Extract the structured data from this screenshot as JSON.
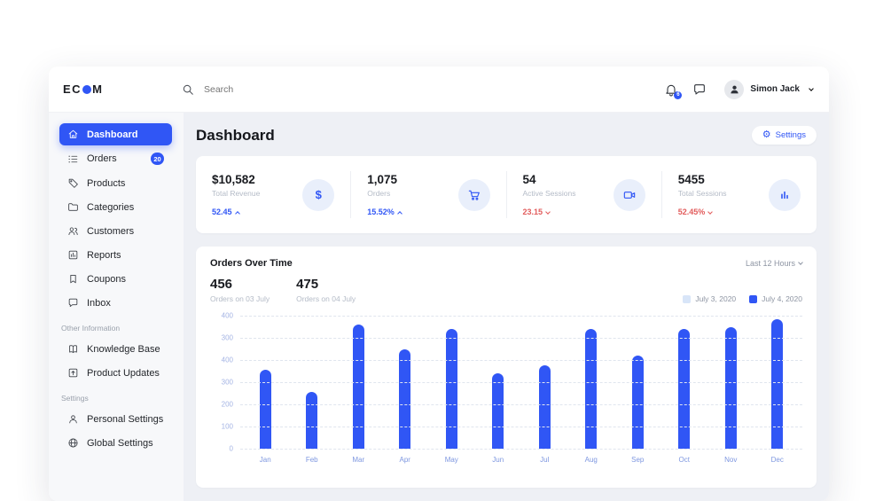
{
  "colors": {
    "accent": "#3056F5",
    "accent_soft": "#E9EFFB",
    "danger": "#E25C5C",
    "legend_light": "#D8E5F8",
    "bar": "#3056F5"
  },
  "header": {
    "logo_prefix": "EC",
    "logo_suffix": "M",
    "search_placeholder": "Search",
    "notification_badge": "6",
    "user_name": "Simon Jack"
  },
  "sidebar": {
    "items": [
      {
        "label": "Dashboard"
      },
      {
        "label": "Orders",
        "badge": "20"
      },
      {
        "label": "Products"
      },
      {
        "label": "Categories"
      },
      {
        "label": "Customers"
      },
      {
        "label": "Reports"
      },
      {
        "label": "Coupons"
      },
      {
        "label": "Inbox"
      }
    ],
    "section_other": "Other Information",
    "other_items": [
      {
        "label": "Knowledge Base"
      },
      {
        "label": "Product Updates"
      }
    ],
    "section_settings": "Settings",
    "settings_items": [
      {
        "label": "Personal Settings"
      },
      {
        "label": "Global Settings"
      }
    ]
  },
  "main": {
    "title": "Dashboard",
    "settings_button": "Settings",
    "settings_icon_glyph": "⚙",
    "stats": [
      {
        "value": "$10,582",
        "label": "Total Revenue",
        "delta": "52.45",
        "trend": "up",
        "icon": "dollar",
        "icon_glyph": "$"
      },
      {
        "value": "1,075",
        "label": "Orders",
        "delta": "15.52%",
        "trend": "up",
        "icon": "cart"
      },
      {
        "value": "54",
        "label": "Active Sessions",
        "delta": "23.15",
        "trend": "down",
        "icon": "video-camera"
      },
      {
        "value": "5455",
        "label": "Total Sessions",
        "delta": "52.45%",
        "trend": "down",
        "icon": "bar-chart"
      }
    ]
  },
  "chart_card": {
    "title": "Orders Over Time",
    "range_selector": "Last 12 Hours",
    "highlights": [
      {
        "value": "456",
        "label": "Orders on 03 July"
      },
      {
        "value": "475",
        "label": "Orders on 04 July"
      }
    ],
    "legend": [
      {
        "label": "July 3, 2020",
        "color": "light"
      },
      {
        "label": "July 4, 2020",
        "color": "accent"
      }
    ]
  },
  "chart_data": {
    "type": "bar",
    "title": "Orders Over Time",
    "categories": [
      "Jan",
      "Feb",
      "Mar",
      "Apr",
      "May",
      "Jun",
      "Jul",
      "Aug",
      "Sep",
      "Oct",
      "Nov",
      "Dec"
    ],
    "values": [
      355,
      255,
      560,
      450,
      540,
      340,
      375,
      540,
      420,
      540,
      550,
      585
    ],
    "ymax": 600,
    "y_tick_labels_top_to_bottom": [
      "400",
      "300",
      "400",
      "300",
      "200",
      "100",
      "0"
    ],
    "xlabel": "",
    "ylabel": "",
    "grid": "horizontal-dashed",
    "legend_position": "top-right",
    "bar_color": "#3056F5",
    "series_note": "single visible series; legend shows July 3 2020 (light) and July 4 2020 (blue)"
  }
}
